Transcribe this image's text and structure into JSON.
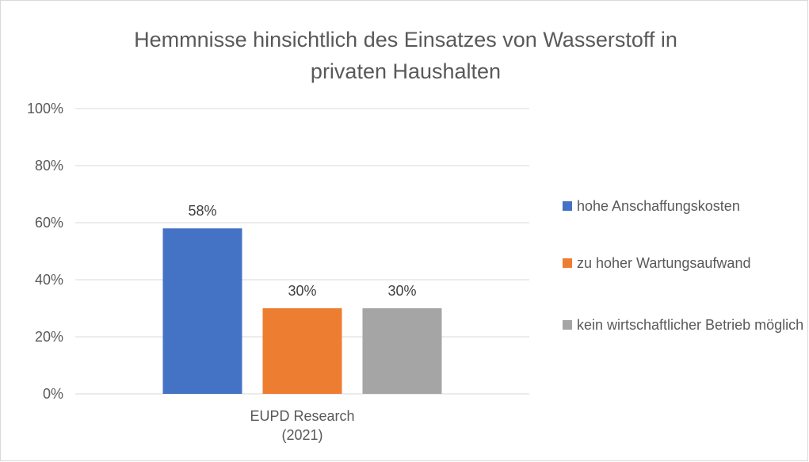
{
  "chart_data": {
    "type": "bar",
    "title": "Hemmnisse hinsichtlich des Einsatzes von Wasserstoff in privaten Haushalten",
    "categories": [
      "EUPD Research (2021)"
    ],
    "series": [
      {
        "name": "hohe Anschaffungskosten",
        "color": "#4472c4",
        "values": [
          58
        ],
        "value_labels": [
          "58%"
        ]
      },
      {
        "name": "zu hoher Wartungsaufwand",
        "color": "#ed7d31",
        "values": [
          30
        ],
        "value_labels": [
          "30%"
        ]
      },
      {
        "name": "kein wirtschaftlicher Betrieb möglich",
        "color": "#a5a5a5",
        "values": [
          30
        ],
        "value_labels": [
          "30%"
        ]
      }
    ],
    "ylim": [
      0,
      100
    ],
    "yticks": [
      {
        "value": 0,
        "label": "0%"
      },
      {
        "value": 20,
        "label": "20%"
      },
      {
        "value": 40,
        "label": "40%"
      },
      {
        "value": 60,
        "label": "60%"
      },
      {
        "value": 80,
        "label": "80%"
      },
      {
        "value": 100,
        "label": "100%"
      }
    ],
    "grid": true,
    "legend": "right"
  }
}
